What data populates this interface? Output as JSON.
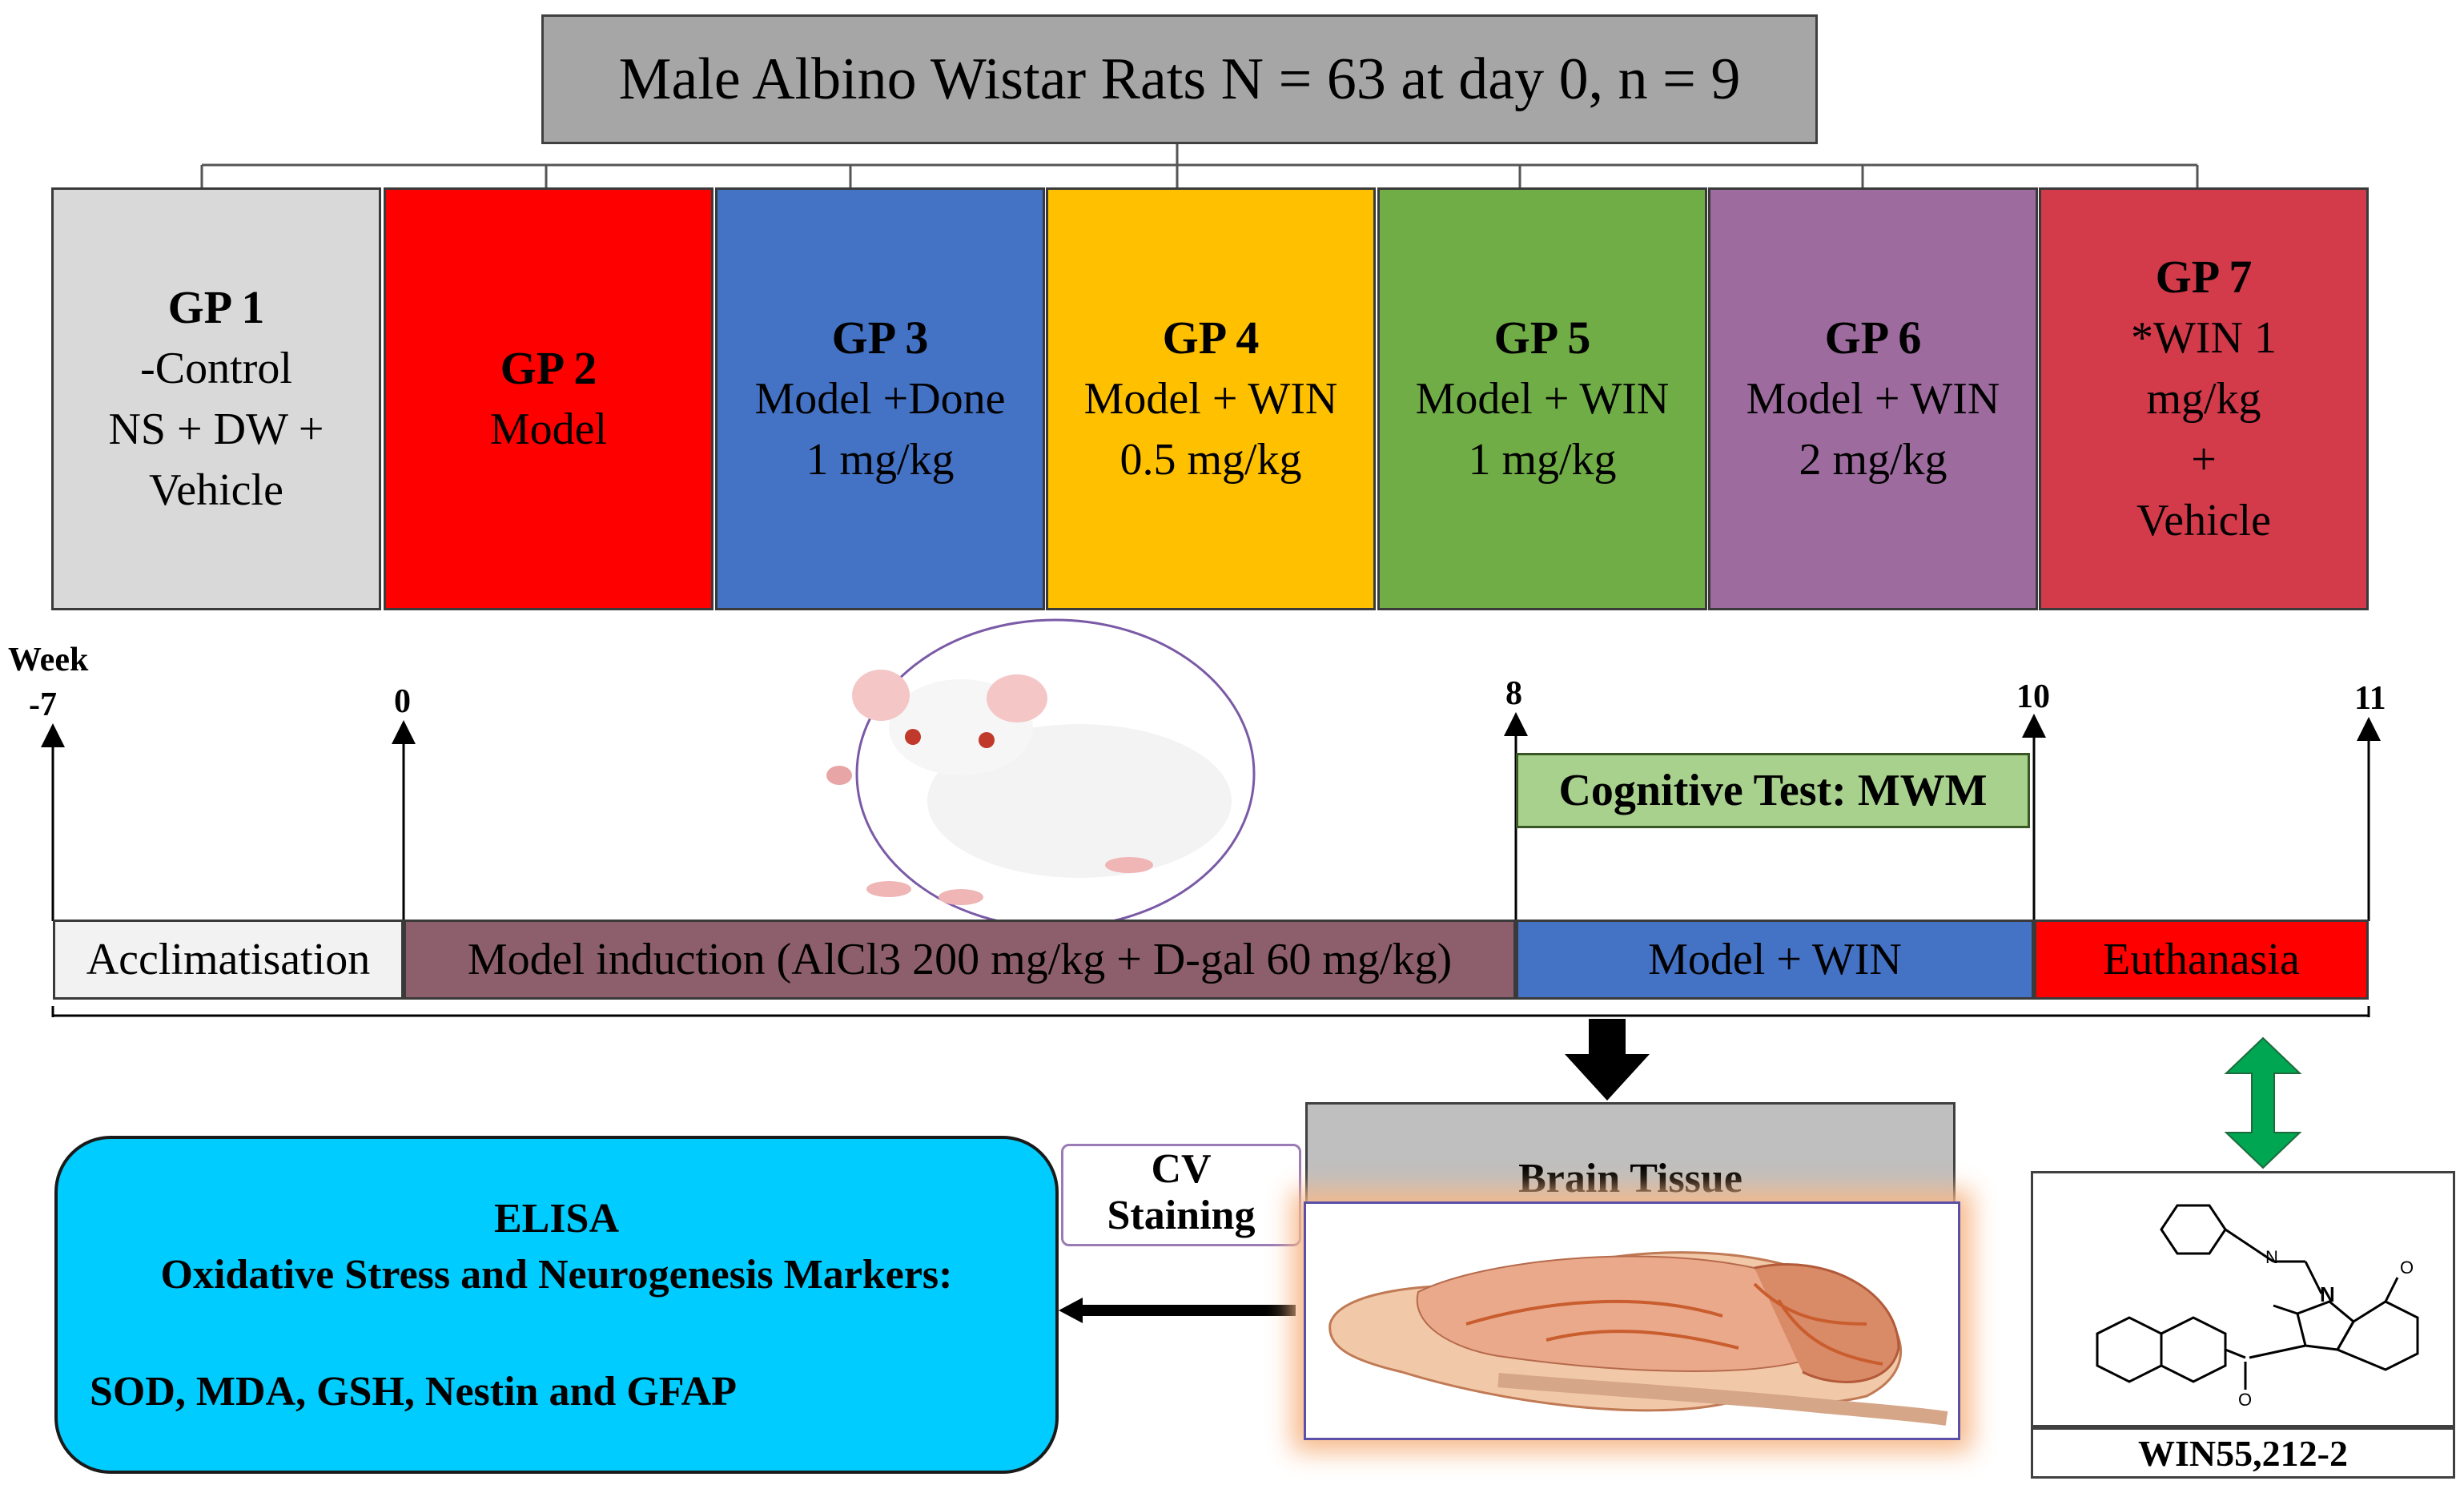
{
  "header": {
    "title": "Male Albino Wistar Rats N = 63 at day 0, n = 9"
  },
  "groups": [
    {
      "name": "GP 1",
      "line1": "-Control",
      "line2": "NS + DW +",
      "line3": "Vehicle",
      "line4": "",
      "color": "#d9d9d9",
      "text_color": "#000000"
    },
    {
      "name": "GP 2",
      "line1": "Model",
      "line2": "",
      "line3": "",
      "line4": "",
      "color": "#ff0000",
      "text_color": "#000000"
    },
    {
      "name": "GP 3",
      "line1": "Model +Done",
      "line2": "1 mg/kg",
      "line3": "",
      "line4": "",
      "color": "#4472c4",
      "text_color": "#000000"
    },
    {
      "name": "GP 4",
      "line1": "Model + WIN",
      "line2": "0.5 mg/kg",
      "line3": "",
      "line4": "",
      "color": "#ffc000",
      "text_color": "#000000"
    },
    {
      "name": "GP 5",
      "line1": "Model + WIN",
      "line2": "1 mg/kg",
      "line3": "",
      "line4": "",
      "color": "#70ad47",
      "text_color": "#000000"
    },
    {
      "name": "GP 6",
      "line1": "Model + WIN",
      "line2": "2 mg/kg",
      "line3": "",
      "line4": "",
      "color": "#9e6b9f",
      "text_color": "#000000"
    },
    {
      "name": "GP 7",
      "line1": "*WIN 1",
      "line2": "mg/kg",
      "line3": "+",
      "line4": "Vehicle",
      "color": "#d33a4a",
      "text_color": "#000000"
    }
  ],
  "timeline": {
    "axis_label": "Week",
    "ticks": [
      {
        "label": "-7"
      },
      {
        "label": "0"
      },
      {
        "label": "8"
      },
      {
        "label": "10"
      },
      {
        "label": "11"
      }
    ],
    "cognitive_test": "Cognitive Test: MWM",
    "phases": [
      {
        "label": "Acclimatisation",
        "color": "#f2f2f2"
      },
      {
        "label": "Model induction (AlCl3 200 mg/kg + D-gal 60 mg/kg)",
        "color": "#8d5f6c"
      },
      {
        "label": "Model + WIN",
        "color": "#4472c4"
      },
      {
        "label": "Euthanasia",
        "color": "#ff0000"
      }
    ]
  },
  "analysis": {
    "brain_tissue": "Brain Tissue",
    "cv_staining_1": "CV",
    "cv_staining_2": "Staining",
    "elisa_title": "ELISA",
    "elisa_subtitle": "Oxidative Stress and Neurogenesis Markers:",
    "elisa_markers": "SOD, MDA, GSH, Nestin and GFAP",
    "compound_label": "WIN55,212-2"
  },
  "colors": {
    "arrow_green": "#00a651",
    "arrow_black": "#000000"
  }
}
